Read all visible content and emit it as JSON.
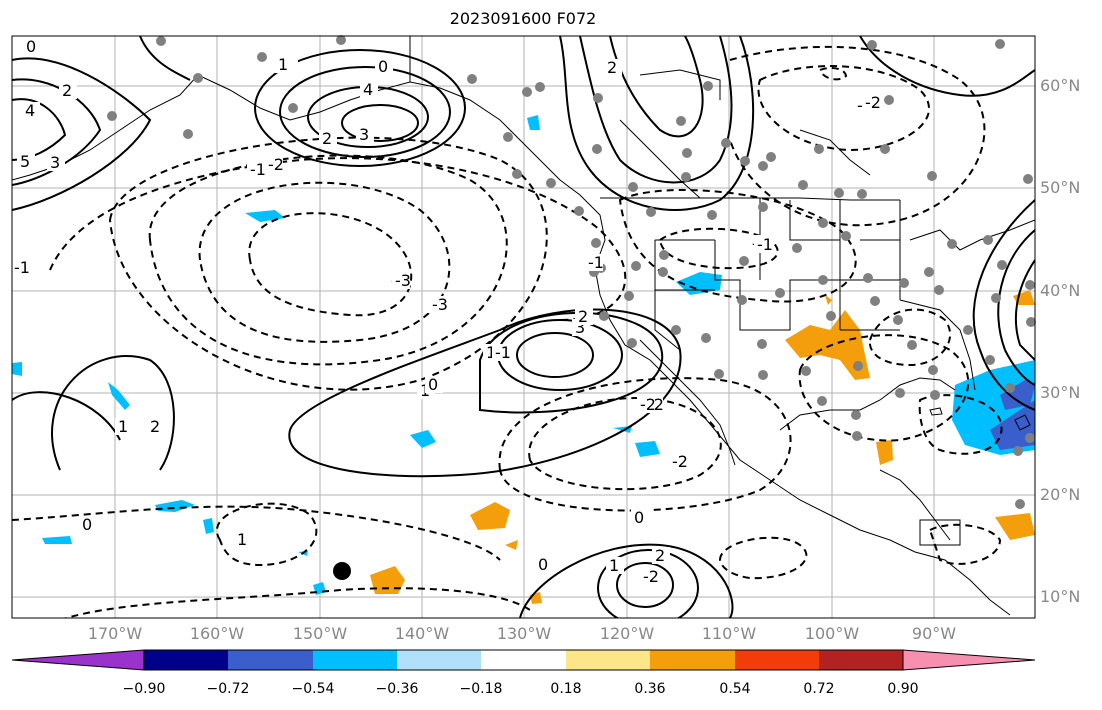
{
  "title": "2023091600 F072",
  "lat_labels": [
    "60°N",
    "50°N",
    "40°N",
    "30°N",
    "20°N",
    "10°N"
  ],
  "lon_labels": [
    "170°W",
    "160°W",
    "150°W",
    "140°W",
    "130°W",
    "120°W",
    "110°W",
    "100°W",
    "90°W"
  ],
  "contour_labels": [
    "0",
    "2",
    "4",
    "3",
    "5",
    "1",
    "-1",
    "-2",
    "-3",
    "4",
    "3",
    "2",
    "1",
    "0",
    "3",
    "2",
    "1",
    "-1",
    "-2",
    "-3",
    "2",
    "1",
    "0",
    "-1",
    "-2",
    "1",
    "2",
    "-2",
    "-1",
    "0",
    "1",
    "-2",
    "-3",
    "-2",
    "0",
    "1",
    "2",
    "2",
    "-2",
    "-2",
    "-1",
    "-3",
    "-2",
    "-1",
    "0"
  ],
  "colorbar": {
    "ticks": [
      "−0.90",
      "−0.72",
      "−0.54",
      "−0.36",
      "−0.18",
      "0.18",
      "0.36",
      "0.54",
      "0.72",
      "0.90"
    ],
    "colors": [
      "#9933cc",
      "#00008b",
      "#3a5fcd",
      "#00bfff",
      "#b0e0fa",
      "#ffffff",
      "#fde68a",
      "#f59e0b",
      "#f23c0a",
      "#b22222",
      "#f78fb0"
    ]
  }
}
